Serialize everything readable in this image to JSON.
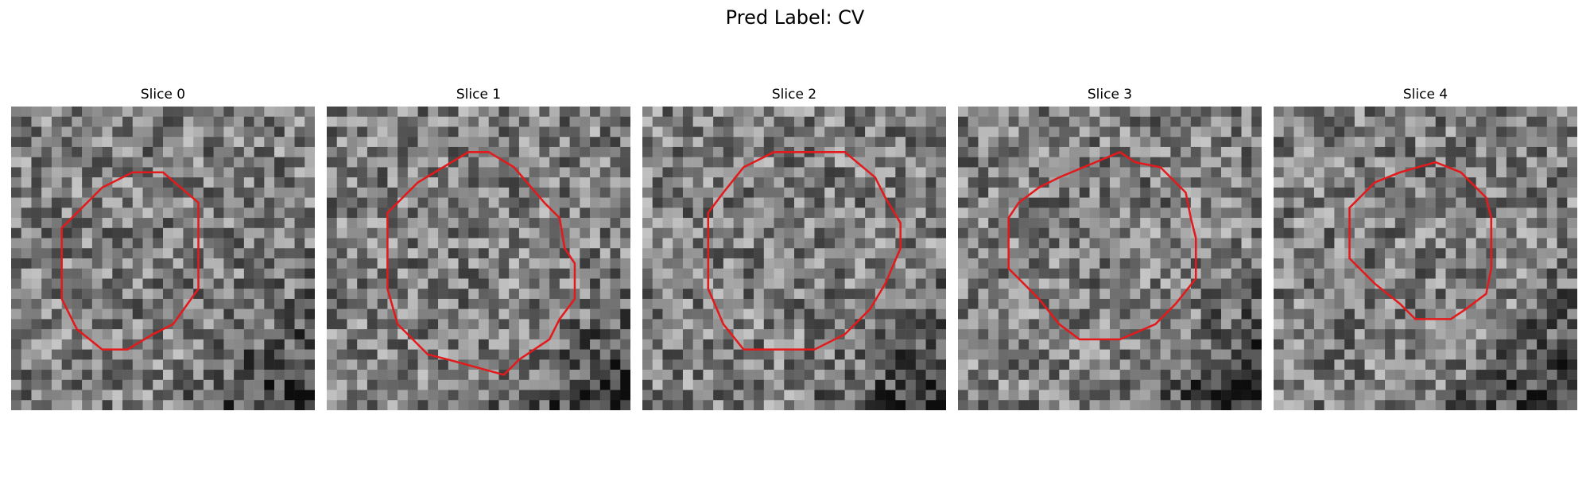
{
  "figure": {
    "title": "Pred Label: CV"
  },
  "panels": [
    {
      "title": "Slice 0",
      "image": {
        "description_icon": "grayscale-noise-tile",
        "grid_size": 30,
        "contour_color": "#e31a1c",
        "seed": 11
      }
    },
    {
      "title": "Slice 1",
      "image": {
        "description_icon": "grayscale-noise-tile",
        "grid_size": 30,
        "contour_color": "#e31a1c",
        "seed": 23
      }
    },
    {
      "title": "Slice 2",
      "image": {
        "description_icon": "grayscale-noise-tile",
        "grid_size": 30,
        "contour_color": "#e31a1c",
        "seed": 37
      }
    },
    {
      "title": "Slice 3",
      "image": {
        "description_icon": "grayscale-noise-tile",
        "grid_size": 30,
        "contour_color": "#e31a1c",
        "seed": 41
      }
    },
    {
      "title": "Slice 4",
      "image": {
        "description_icon": "grayscale-noise-tile",
        "grid_size": 30,
        "contour_color": "#e31a1c",
        "seed": 59
      }
    }
  ],
  "colors": {
    "contour": "#e31a1c",
    "background": "#ffffff"
  }
}
